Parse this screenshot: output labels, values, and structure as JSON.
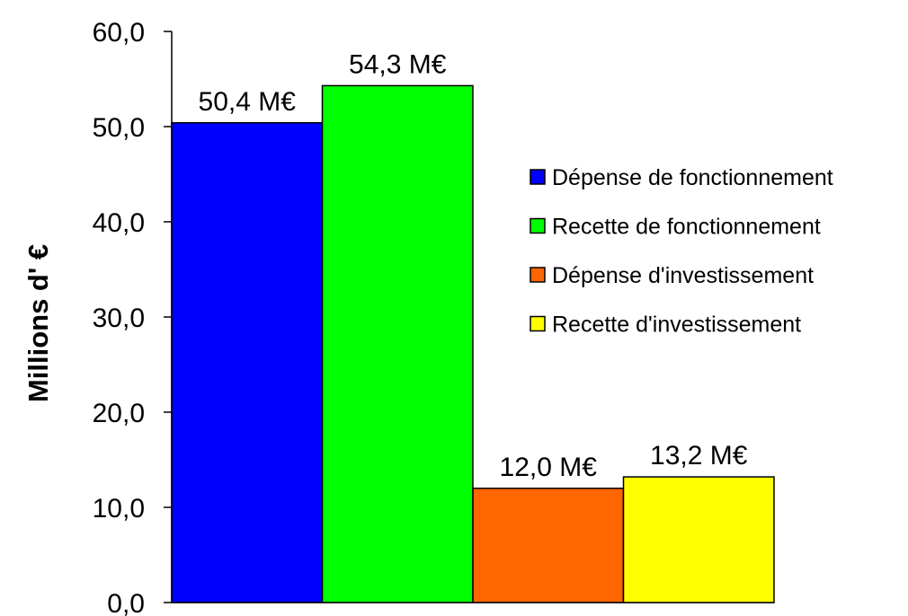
{
  "chart_data": {
    "type": "bar",
    "categories": [
      "Dépense de fonctionnement",
      "Recette de fonctionnement",
      "Dépense d'investissement",
      "Recette d'investissement"
    ],
    "values": [
      50.4,
      54.3,
      12.0,
      13.2
    ],
    "data_labels": [
      "50,4 M€",
      "54,3 M€",
      "12,0 M€",
      "13,2 M€"
    ],
    "colors": [
      "#0000FF",
      "#00FF00",
      "#FF6600",
      "#FFFF00"
    ],
    "ylabel": "Millions d' €",
    "ylim": [
      0,
      60
    ],
    "yticks": [
      0,
      10,
      20,
      30,
      40,
      50,
      60
    ],
    "ytick_labels": [
      "0,0",
      "10,0",
      "20,0",
      "30,0",
      "40,0",
      "50,0",
      "60,0"
    ],
    "grid": false,
    "legend": {
      "placement": "right",
      "entries": [
        "Dépense de fonctionnement",
        "Recette de fonctionnement",
        "Dépense d'investissement",
        "Recette d'investissement"
      ]
    }
  }
}
